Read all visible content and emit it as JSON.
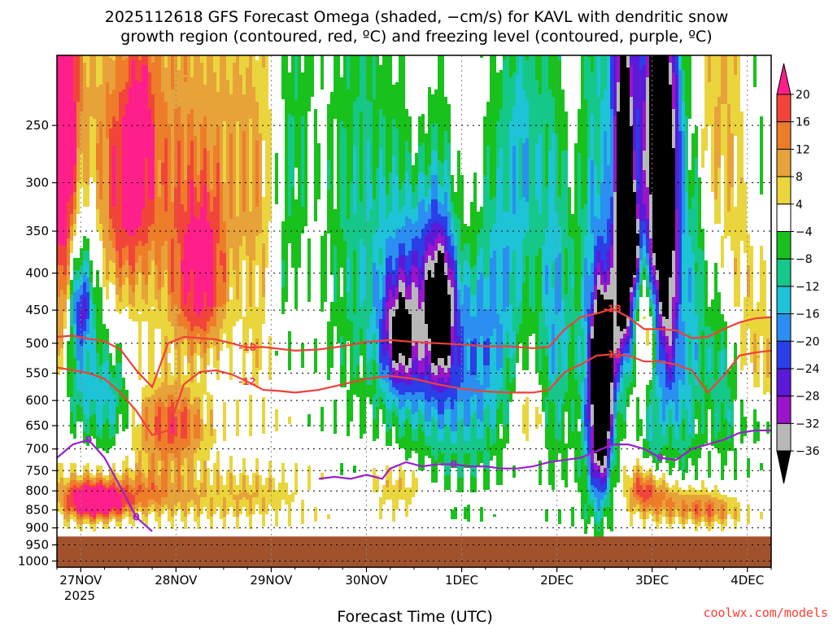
{
  "header": {
    "title_line1": "2025112618 GFS Forecast Omega (shaded, −cm/s) for KAVL with dendritic snow",
    "title_line2": "growth region (contoured, red, ºC) and freezing level (contoured, purple, ºC)"
  },
  "footer": {
    "credit": "coolwx.com/models"
  },
  "chart_data": {
    "type": "heatmap",
    "title": "2025112618 GFS Forecast Omega (shaded, −cm/s) for KAVL with dendritic snow growth region (contoured, red, ºC) and freezing level (contoured, purple, ºC)",
    "xlabel": "Forecast Time (UTC)",
    "ylabel": "",
    "x_ticks": [
      "27NOV",
      "28NOV",
      "29NOV",
      "30NOV",
      "1DEC",
      "2DEC",
      "3DEC",
      "4DEC"
    ],
    "x_tick_hours": [
      6,
      30,
      54,
      78,
      102,
      126,
      150,
      174
    ],
    "x_year_label": "2025",
    "xlim_hours": [
      0,
      180
    ],
    "y_ticks": [
      250,
      300,
      350,
      400,
      450,
      500,
      550,
      600,
      650,
      700,
      750,
      800,
      850,
      900,
      950,
      1000
    ],
    "ylim_hpa": [
      200,
      1020
    ],
    "y_scale": "log",
    "grid": true,
    "terrain_top_hpa": 925,
    "colorbar": {
      "ticks": [
        20,
        16,
        12,
        8,
        4,
        -4,
        -8,
        -12,
        -16,
        -20,
        -24,
        -28,
        -32,
        -36
      ],
      "levels": [
        {
          "min": 20,
          "color": "#ff1f8a"
        },
        {
          "min": 16,
          "color": "#f2453a"
        },
        {
          "min": 12,
          "color": "#ee7d2a"
        },
        {
          "min": 8,
          "color": "#e8a23a"
        },
        {
          "min": 4,
          "color": "#ead63c"
        },
        {
          "min": -4,
          "color": "#ffffff"
        },
        {
          "min": -8,
          "color": "#19c11c"
        },
        {
          "min": -12,
          "color": "#16c78a"
        },
        {
          "min": -16,
          "color": "#1ec3d8"
        },
        {
          "min": -20,
          "color": "#2a8ff0"
        },
        {
          "min": -24,
          "color": "#2b3ee8"
        },
        {
          "min": -28,
          "color": "#5a1ad8"
        },
        {
          "min": -32,
          "color": "#9a14c9"
        },
        {
          "min": -36,
          "color": "#b8b8b8"
        },
        {
          "min": -999,
          "color": "#000000"
        }
      ]
    },
    "dgz_contours": [
      {
        "label": "-18",
        "hours": [
          0,
          4,
          8,
          12,
          16,
          20,
          24,
          28,
          32,
          36,
          40,
          44,
          48,
          52,
          56,
          60,
          66,
          72,
          78,
          84,
          90,
          96,
          102,
          108,
          114,
          120,
          124,
          128,
          132,
          136,
          140,
          144,
          148,
          152,
          156,
          160,
          164,
          168,
          172,
          176,
          180
        ],
        "pressure": [
          490,
          488,
          493,
          497,
          510,
          545,
          575,
          500,
          490,
          492,
          494,
          500,
          507,
          506,
          509,
          512,
          510,
          505,
          498,
          495,
          498,
          500,
          502,
          505,
          505,
          508,
          506,
          478,
          460,
          455,
          448,
          460,
          478,
          478,
          480,
          492,
          490,
          478,
          468,
          462,
          460
        ]
      },
      {
        "label": "-12",
        "hours": [
          0,
          4,
          8,
          12,
          16,
          20,
          24,
          28,
          32,
          36,
          40,
          44,
          48,
          52,
          56,
          60,
          66,
          72,
          78,
          84,
          90,
          96,
          102,
          108,
          114,
          120,
          124,
          128,
          132,
          136,
          140,
          144,
          148,
          152,
          156,
          160,
          164,
          168,
          172,
          176,
          180
        ],
        "pressure": [
          540,
          545,
          550,
          560,
          585,
          620,
          670,
          660,
          570,
          548,
          545,
          552,
          565,
          580,
          582,
          585,
          580,
          570,
          560,
          555,
          560,
          570,
          578,
          583,
          585,
          585,
          580,
          548,
          535,
          520,
          518,
          520,
          530,
          530,
          535,
          545,
          585,
          555,
          520,
          515,
          512
        ]
      }
    ],
    "freezing_level": [
      {
        "label": "0",
        "hours": [
          0,
          4,
          8,
          12,
          16,
          20,
          24
        ],
        "pressure": [
          720,
          690,
          680,
          720,
          790,
          870,
          910
        ]
      },
      {
        "label": "0",
        "hours": [
          66,
          70,
          74,
          78,
          82,
          84,
          88,
          92,
          96,
          100,
          104,
          108,
          112,
          116,
          120,
          124,
          128,
          132,
          136,
          140,
          144,
          148,
          152,
          156,
          160,
          164,
          168,
          172,
          176,
          180
        ],
        "pressure": [
          770,
          765,
          770,
          760,
          770,
          745,
          730,
          740,
          735,
          735,
          740,
          740,
          745,
          745,
          740,
          730,
          725,
          720,
          705,
          690,
          690,
          700,
          720,
          725,
          700,
          690,
          680,
          665,
          660,
          660
        ]
      }
    ]
  }
}
